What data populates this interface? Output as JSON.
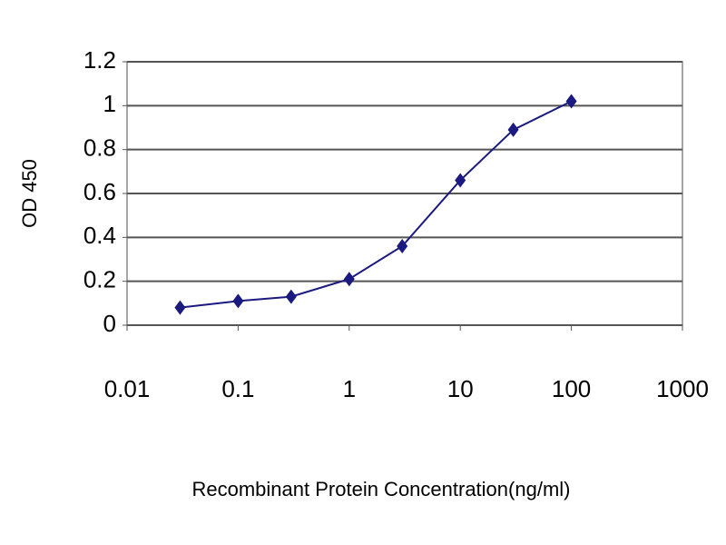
{
  "chart_data": {
    "type": "line",
    "x_label": "Recombinant Protein Concentration(ng/ml)",
    "y_label": "OD 450",
    "x": [
      0.03,
      0.1,
      0.3,
      1,
      3,
      10,
      30,
      100
    ],
    "series": [
      {
        "color": "#1a1a80",
        "values": [
          0.08,
          0.11,
          0.13,
          0.21,
          0.36,
          0.66,
          0.89,
          1.02
        ]
      }
    ],
    "xscale": "log",
    "xlim": [
      0.01,
      1000
    ],
    "xticks": [
      0.01,
      0.1,
      1,
      10,
      100,
      1000
    ],
    "ylim": [
      0,
      1.2
    ],
    "yticks": [
      0,
      0.2,
      0.4,
      0.6,
      0.8,
      1,
      1.2
    ],
    "grid": true
  }
}
